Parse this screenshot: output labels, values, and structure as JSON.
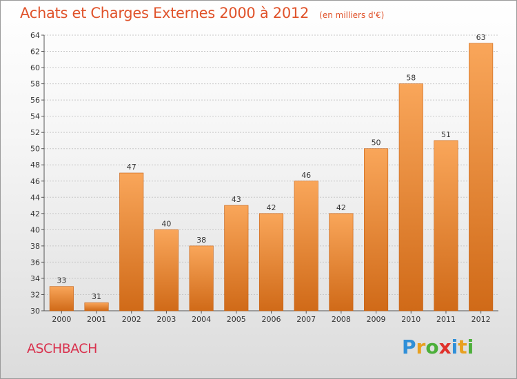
{
  "title": "Achats et Charges Externes 2000 à 2012",
  "subtitle": "(en milliers d'€)",
  "location": "ASCHBACH",
  "logo": {
    "text": "Proxiti",
    "letters": [
      {
        "ch": "P",
        "color": "#2f8fd8"
      },
      {
        "ch": "r",
        "color": "#e8a020"
      },
      {
        "ch": "o",
        "color": "#4caf3a"
      },
      {
        "ch": "x",
        "color": "#e0312b"
      },
      {
        "ch": "i",
        "color": "#2f8fd8"
      },
      {
        "ch": "t",
        "color": "#e8a020"
      },
      {
        "ch": "i",
        "color": "#4caf3a"
      }
    ]
  },
  "colors": {
    "title": "#e0532b",
    "location": "#d9334f",
    "bar_top": "#f9a65a",
    "bar_bottom": "#d06a18",
    "bar_stroke": "#c45f12",
    "grid": "#c8c8c8"
  },
  "chart_data": {
    "type": "bar",
    "title": "Achats et Charges Externes 2000 à 2012",
    "subtitle": "(en milliers d'€)",
    "categories": [
      "2000",
      "2001",
      "2002",
      "2003",
      "2004",
      "2005",
      "2006",
      "2007",
      "2008",
      "2009",
      "2010",
      "2011",
      "2012"
    ],
    "values": [
      33,
      31,
      47,
      40,
      38,
      43,
      42,
      46,
      42,
      50,
      58,
      51,
      63
    ],
    "ylim": [
      30,
      64
    ],
    "yticks": [
      30,
      32,
      34,
      36,
      38,
      40,
      42,
      44,
      46,
      48,
      50,
      52,
      54,
      56,
      58,
      60,
      62,
      64
    ],
    "grid": "y-dashed",
    "legend": "none"
  }
}
